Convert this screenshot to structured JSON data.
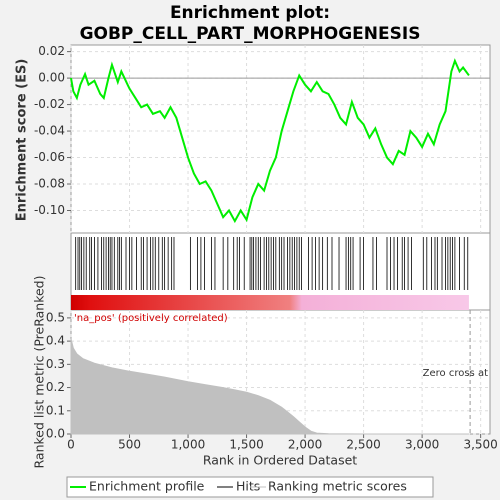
{
  "chart_data": [
    {
      "type": "line",
      "title": "Enrichment plot:",
      "subtitle": "GOBP_CELL_PART_MORPHOGENESIS",
      "ylabel": "Enrichment score (ES)",
      "x": [
        0,
        20,
        50,
        80,
        120,
        150,
        200,
        250,
        280,
        320,
        350,
        400,
        430,
        500,
        550,
        600,
        650,
        700,
        760,
        800,
        850,
        900,
        950,
        1000,
        1050,
        1100,
        1150,
        1200,
        1250,
        1300,
        1350,
        1400,
        1450,
        1500,
        1550,
        1600,
        1650,
        1700,
        1750,
        1800,
        1850,
        1900,
        1950,
        2000,
        2050,
        2100,
        2150,
        2200,
        2250,
        2300,
        2350,
        2400,
        2450,
        2500,
        2550,
        2600,
        2650,
        2700,
        2750,
        2800,
        2850,
        2900,
        2950,
        3000,
        3050,
        3100,
        3150,
        3200,
        3250,
        3280,
        3320,
        3350,
        3400
      ],
      "series": [
        {
          "name": "Enrichment profile",
          "color": "#00ee00",
          "values": [
            0,
            -0.01,
            -0.015,
            -0.005,
            0.003,
            -0.005,
            -0.002,
            -0.012,
            -0.015,
            0,
            0.01,
            -0.003,
            0.005,
            -0.008,
            -0.015,
            -0.022,
            -0.02,
            -0.027,
            -0.025,
            -0.03,
            -0.022,
            -0.03,
            -0.045,
            -0.06,
            -0.072,
            -0.08,
            -0.078,
            -0.085,
            -0.095,
            -0.105,
            -0.1,
            -0.108,
            -0.1,
            -0.107,
            -0.09,
            -0.08,
            -0.085,
            -0.07,
            -0.06,
            -0.04,
            -0.025,
            -0.01,
            0.002,
            -0.005,
            -0.01,
            -0.003,
            -0.01,
            -0.012,
            -0.02,
            -0.03,
            -0.035,
            -0.018,
            -0.03,
            -0.035,
            -0.045,
            -0.038,
            -0.05,
            -0.06,
            -0.065,
            -0.055,
            -0.058,
            -0.04,
            -0.045,
            -0.052,
            -0.042,
            -0.05,
            -0.035,
            -0.025,
            0.005,
            0.013,
            0.005,
            0.008,
            0.002
          ]
        }
      ],
      "xlim": [
        0,
        3580
      ],
      "ylim": [
        -0.117,
        0.025
      ],
      "yticks": [
        0.02,
        {
          "value": 0,
          "label": "0.00"
        },
        -0.02,
        -0.04,
        -0.06,
        -0.08,
        {
          "value": -0.1,
          "label": "-0.10"
        }
      ],
      "grid": true
    },
    {
      "type": "rug",
      "xlim": [
        0,
        3580
      ],
      "series": [
        {
          "name": "Hits",
          "color": "#000000",
          "x": [
            40,
            60,
            75,
            90,
            110,
            130,
            160,
            175,
            200,
            230,
            260,
            280,
            300,
            320,
            335,
            350,
            370,
            400,
            415,
            430,
            470,
            500,
            520,
            560,
            600,
            620,
            650,
            680,
            700,
            720,
            750,
            780,
            800,
            830,
            860,
            880,
            1020,
            1080,
            1110,
            1140,
            1200,
            1230,
            1300,
            1340,
            1390,
            1420,
            1440,
            1480,
            1530,
            1545,
            1560,
            1580,
            1600,
            1620,
            1650,
            1670,
            1690,
            1710,
            1730,
            1750,
            1780,
            1800,
            1820,
            1850,
            1870,
            1890,
            1910,
            1930,
            1950,
            1970,
            2030,
            2060,
            2090,
            2120,
            2150,
            2190,
            2230,
            2290,
            2350,
            2370,
            2390,
            2410,
            2470,
            2500,
            2580,
            2610,
            2700,
            2730,
            2760,
            2790,
            2830,
            2850,
            2880,
            2910,
            3010,
            3040,
            3080,
            3110,
            3130,
            3170,
            3200,
            3220,
            3240,
            3260,
            3280,
            3320,
            3360,
            3390
          ]
        }
      ]
    },
    {
      "type": "area",
      "xlabel": "Rank in Ordered Dataset",
      "ylabel": "Ranked list metric (PreRanked)",
      "x": [
        0,
        20,
        50,
        100,
        200,
        350,
        500,
        650,
        800,
        1000,
        1150,
        1300,
        1400,
        1500,
        1600,
        1700,
        1800,
        1850,
        1900,
        1950,
        2000,
        2050,
        2100,
        2200,
        2500,
        3000,
        3400
      ],
      "series": [
        {
          "name": "Ranking metric scores",
          "color": "#c0c0c0",
          "values": [
            0.41,
            0.37,
            0.345,
            0.325,
            0.305,
            0.285,
            0.27,
            0.258,
            0.245,
            0.225,
            0.212,
            0.2,
            0.19,
            0.18,
            0.165,
            0.145,
            0.115,
            0.095,
            0.075,
            0.052,
            0.03,
            0.012,
            0.004,
            0.001,
            0,
            0,
            0
          ]
        }
      ],
      "xlim": [
        0,
        3580
      ],
      "ylim": [
        0,
        0.534
      ],
      "xticks": [
        0,
        500,
        {
          "value": 1000,
          "label": "1,000"
        },
        {
          "value": 1500,
          "label": "1,500"
        },
        {
          "value": 2000,
          "label": "2,000"
        },
        {
          "value": 2500,
          "label": "2,500"
        },
        {
          "value": 3000,
          "label": "3,000"
        },
        {
          "value": 3500,
          "label": "3,500"
        }
      ],
      "yticks": [
        {
          "value": 0,
          "label": "0.0"
        },
        0.1,
        0.2,
        0.3,
        0.4,
        0.5
      ],
      "annotations": [
        "'na_pos' (positively correlated)",
        "Zero cross at"
      ],
      "zero_cross": 3410,
      "grid": true
    }
  ]
}
